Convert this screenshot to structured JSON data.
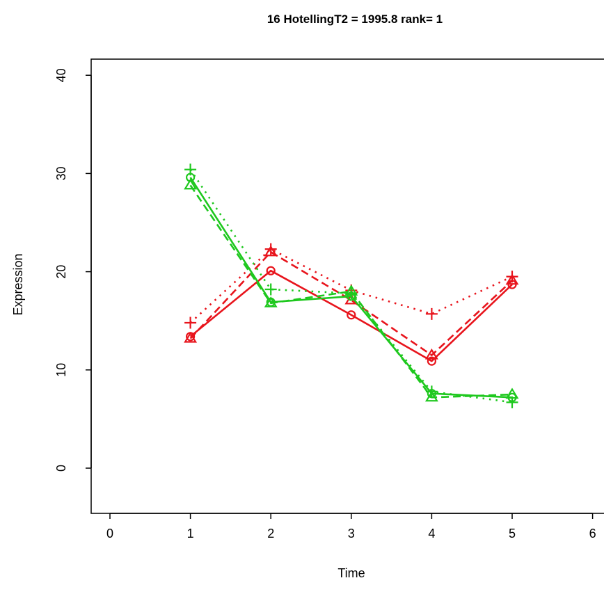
{
  "chart_data": {
    "type": "line",
    "title": "16  HotellingT2 = 1995.8  rank= 1",
    "xlabel": "Time",
    "ylabel": "Expression",
    "xlim": [
      0,
      6
    ],
    "ylim": [
      -5,
      40
    ],
    "x_ticks": [
      "0",
      "1",
      "2",
      "3",
      "4",
      "5",
      "6"
    ],
    "y_ticks": [
      "0",
      "10",
      "20",
      "30",
      "40"
    ],
    "grid": false,
    "series": [
      {
        "group": "red",
        "color": "#e8141c",
        "line": "solid",
        "marker": "circle",
        "x": [
          1,
          2,
          3,
          4,
          5
        ],
        "values": [
          13.4,
          20.1,
          15.6,
          10.9,
          18.7
        ]
      },
      {
        "group": "red",
        "color": "#e8141c",
        "line": "dashed",
        "marker": "triangle",
        "x": [
          1,
          2,
          3,
          4,
          5
        ],
        "values": [
          13.2,
          22.0,
          17.1,
          11.5,
          19.1
        ]
      },
      {
        "group": "red",
        "color": "#e8141c",
        "line": "dotted",
        "marker": "plus",
        "x": [
          1,
          2,
          3,
          4,
          5
        ],
        "values": [
          14.8,
          22.3,
          18.1,
          15.7,
          19.5
        ]
      },
      {
        "group": "green",
        "color": "#1ec81e",
        "line": "solid",
        "marker": "circle",
        "x": [
          1,
          2,
          3,
          4,
          5
        ],
        "values": [
          29.6,
          16.9,
          17.5,
          7.6,
          7.2
        ]
      },
      {
        "group": "green",
        "color": "#1ec81e",
        "line": "dashed",
        "marker": "triangle",
        "x": [
          1,
          2,
          3,
          4,
          5
        ],
        "values": [
          28.8,
          16.8,
          18.0,
          7.2,
          7.5
        ]
      },
      {
        "group": "green",
        "color": "#1ec81e",
        "line": "dotted",
        "marker": "plus",
        "x": [
          1,
          2,
          3,
          4,
          5
        ],
        "values": [
          30.4,
          18.2,
          17.8,
          7.8,
          6.7
        ]
      }
    ]
  }
}
